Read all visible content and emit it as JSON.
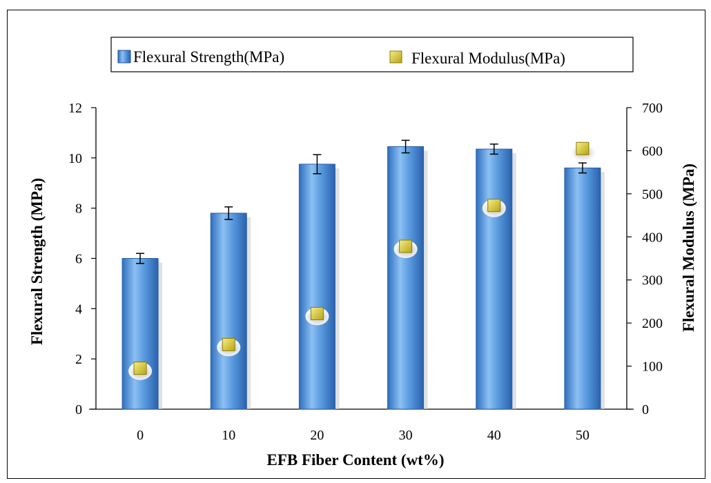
{
  "chart_data": {
    "type": "bar",
    "xlabel": "EFB Fiber Content (wt%)",
    "ylabel": "Flexural Strength (MPa)",
    "y2label": "Flexural Modulus (MPa)",
    "categories": [
      "0",
      "10",
      "20",
      "30",
      "40",
      "50"
    ],
    "ylim": [
      0,
      12
    ],
    "y2lim": [
      0,
      700
    ],
    "yticks": [
      "0",
      "2",
      "4",
      "6",
      "8",
      "10",
      "12"
    ],
    "y2ticks": [
      "0",
      "100",
      "200",
      "300",
      "400",
      "500",
      "600",
      "700"
    ],
    "legend_position": "top",
    "grid": false,
    "series": [
      {
        "name": "Flexural Strength(MPa)",
        "type": "bar",
        "axis": "left",
        "color": "#4f8fd6",
        "values": [
          6.0,
          7.8,
          9.75,
          10.45,
          10.35,
          9.6
        ],
        "errors": [
          0.2,
          0.25,
          0.38,
          0.25,
          0.2,
          0.2
        ]
      },
      {
        "name": "Flexural Modulus(MPa)",
        "type": "marker",
        "axis": "right",
        "color": "#d8c81a",
        "values": [
          95,
          150,
          222,
          378,
          473,
          605
        ]
      }
    ]
  }
}
